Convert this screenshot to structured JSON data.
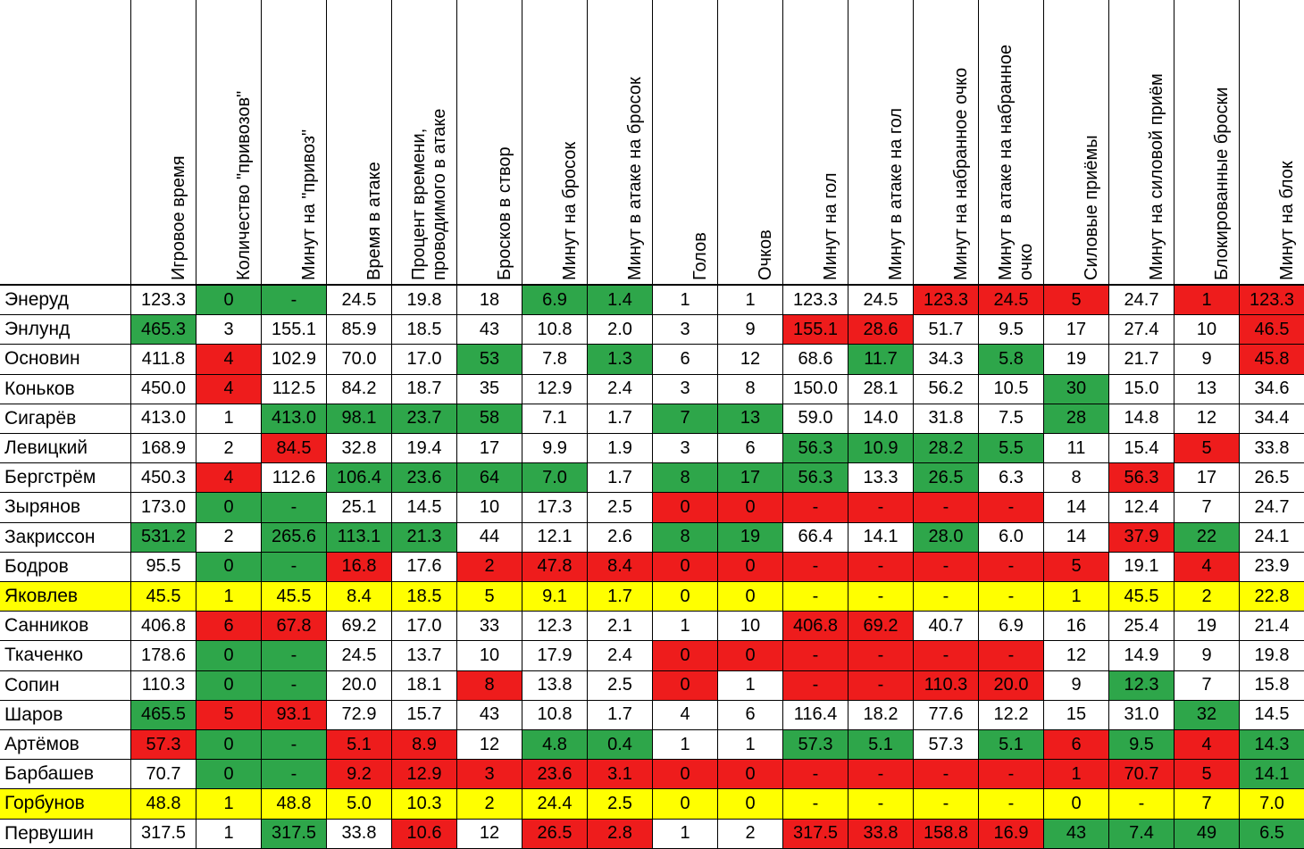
{
  "chart_data": {
    "type": "table",
    "columns": [
      "Игровое время",
      "Количество \"привозов\"",
      "Минут на \"привоз\"",
      "Время в атаке",
      "Процент времени,\nпроводимого в атаке",
      "Бросков в створ",
      "Минут на бросок",
      "Минут в атаке на бросок",
      "Голов",
      "Очков",
      "Минут на гол",
      "Минут в атаке на гол",
      "Минут на набранное очко",
      "Минут в атаке на набранное\nочко",
      "Силовые приёмы",
      "Минут на силовой приём",
      "Блокированные броски",
      "Минут на блок"
    ],
    "colors": {
      "G": "#2ea64a",
      "R": "#ee1c1c",
      "Y": "#ffff00",
      "W": "#ffffff"
    },
    "rows": [
      {
        "name": "Энеруд",
        "values": [
          "123.3",
          "0",
          "-",
          "24.5",
          "19.8",
          "18",
          "6.9",
          "1.4",
          "1",
          "1",
          "123.3",
          "24.5",
          "123.3",
          "24.5",
          "5",
          "24.7",
          "1",
          "123.3"
        ],
        "colors": "WGGWWWGGWWWWRRRWRR"
      },
      {
        "name": "Энлунд",
        "values": [
          "465.3",
          "3",
          "155.1",
          "85.9",
          "18.5",
          "43",
          "10.8",
          "2.0",
          "3",
          "9",
          "155.1",
          "28.6",
          "51.7",
          "9.5",
          "17",
          "27.4",
          "10",
          "46.5"
        ],
        "colors": "GWWWWWWWWWRRWWWWWR"
      },
      {
        "name": "Основин",
        "values": [
          "411.8",
          "4",
          "102.9",
          "70.0",
          "17.0",
          "53",
          "7.8",
          "1.3",
          "6",
          "12",
          "68.6",
          "11.7",
          "34.3",
          "5.8",
          "19",
          "21.7",
          "9",
          "45.8"
        ],
        "colors": "WRWWWGWGWWWGWGWWWR"
      },
      {
        "name": "Коньков",
        "values": [
          "450.0",
          "4",
          "112.5",
          "84.2",
          "18.7",
          "35",
          "12.9",
          "2.4",
          "3",
          "8",
          "150.0",
          "28.1",
          "56.2",
          "10.5",
          "30",
          "15.0",
          "13",
          "34.6"
        ],
        "colors": "WRWWWWWWWWWWWWGWWW"
      },
      {
        "name": "Сигарёв",
        "values": [
          "413.0",
          "1",
          "413.0",
          "98.1",
          "23.7",
          "58",
          "7.1",
          "1.7",
          "7",
          "13",
          "59.0",
          "14.0",
          "31.8",
          "7.5",
          "28",
          "14.8",
          "12",
          "34.4"
        ],
        "colors": "WWGGGGWWGGWWWWGWWW"
      },
      {
        "name": "Левицкий",
        "values": [
          "168.9",
          "2",
          "84.5",
          "32.8",
          "19.4",
          "17",
          "9.9",
          "1.9",
          "3",
          "6",
          "56.3",
          "10.9",
          "28.2",
          "5.5",
          "11",
          "15.4",
          "5",
          "33.8"
        ],
        "colors": "WWRWWWWWWWGGGGWWRW"
      },
      {
        "name": "Бергстрём",
        "values": [
          "450.3",
          "4",
          "112.6",
          "106.4",
          "23.6",
          "64",
          "7.0",
          "1.7",
          "8",
          "17",
          "56.3",
          "13.3",
          "26.5",
          "6.3",
          "8",
          "56.3",
          "17",
          "26.5"
        ],
        "colors": "WRWGGGGWGGGWGWWRWW"
      },
      {
        "name": "Зырянов",
        "values": [
          "173.0",
          "0",
          "-",
          "25.1",
          "14.5",
          "10",
          "17.3",
          "2.5",
          "0",
          "0",
          "-",
          "-",
          "-",
          "-",
          "14",
          "12.4",
          "7",
          "24.7"
        ],
        "colors": "WGGWWWWWRRRRRRWWWW"
      },
      {
        "name": "Закриссон",
        "values": [
          "531.2",
          "2",
          "265.6",
          "113.1",
          "21.3",
          "44",
          "12.1",
          "2.6",
          "8",
          "19",
          "66.4",
          "14.1",
          "28.0",
          "6.0",
          "14",
          "37.9",
          "22",
          "24.1"
        ],
        "colors": "GWGGGWWWGGWWGWWRGW"
      },
      {
        "name": "Бодров",
        "values": [
          "95.5",
          "0",
          "-",
          "16.8",
          "17.6",
          "2",
          "47.8",
          "8.4",
          "0",
          "0",
          "-",
          "-",
          "-",
          "-",
          "5",
          "19.1",
          "4",
          "23.9"
        ],
        "colors": "WGGRWRRRRRRRRRRWRW"
      },
      {
        "name": "Яковлев",
        "values": [
          "45.5",
          "1",
          "45.5",
          "8.4",
          "18.5",
          "5",
          "9.1",
          "1.7",
          "0",
          "0",
          "-",
          "-",
          "-",
          "-",
          "1",
          "45.5",
          "2",
          "22.8"
        ],
        "colors": "YYYYYYYYYYYYYYYYYY",
        "name_color": "Y"
      },
      {
        "name": "Санников",
        "values": [
          "406.8",
          "6",
          "67.8",
          "69.2",
          "17.0",
          "33",
          "12.3",
          "2.1",
          "1",
          "10",
          "406.8",
          "69.2",
          "40.7",
          "6.9",
          "16",
          "25.4",
          "19",
          "21.4"
        ],
        "colors": "WRRWWWWWWWRRWWWWWW"
      },
      {
        "name": "Ткаченко",
        "values": [
          "178.6",
          "0",
          "-",
          "24.5",
          "13.7",
          "10",
          "17.9",
          "2.4",
          "0",
          "0",
          "-",
          "-",
          "-",
          "-",
          "12",
          "14.9",
          "9",
          "19.8"
        ],
        "colors": "WGGWWWWWRRRRRRWWWW"
      },
      {
        "name": "Сопин",
        "values": [
          "110.3",
          "0",
          "-",
          "20.0",
          "18.1",
          "8",
          "13.8",
          "2.5",
          "0",
          "1",
          "-",
          "-",
          "110.3",
          "20.0",
          "9",
          "12.3",
          "7",
          "15.8"
        ],
        "colors": "WGGWWRWWRWRRRRWGWW"
      },
      {
        "name": "Шаров",
        "values": [
          "465.5",
          "5",
          "93.1",
          "72.9",
          "15.7",
          "43",
          "10.8",
          "1.7",
          "4",
          "6",
          "116.4",
          "18.2",
          "77.6",
          "12.2",
          "15",
          "31.0",
          "32",
          "14.5"
        ],
        "colors": "GRRWWWWWWWWWWWWWGW"
      },
      {
        "name": "Артёмов",
        "values": [
          "57.3",
          "0",
          "-",
          "5.1",
          "8.9",
          "12",
          "4.8",
          "0.4",
          "1",
          "1",
          "57.3",
          "5.1",
          "57.3",
          "5.1",
          "6",
          "9.5",
          "4",
          "14.3"
        ],
        "colors": "RGGRRWGGWWGGWGRGRG"
      },
      {
        "name": "Барбашев",
        "values": [
          "70.7",
          "0",
          "-",
          "9.2",
          "12.9",
          "3",
          "23.6",
          "3.1",
          "0",
          "0",
          "-",
          "-",
          "-",
          "-",
          "1",
          "70.7",
          "5",
          "14.1"
        ],
        "colors": "WGGRRRRRRRRRRRRRRG"
      },
      {
        "name": "Горбунов",
        "values": [
          "48.8",
          "1",
          "48.8",
          "5.0",
          "10.3",
          "2",
          "24.4",
          "2.5",
          "0",
          "0",
          "-",
          "-",
          "-",
          "-",
          "0",
          "-",
          "7",
          "7.0"
        ],
        "colors": "YYYYYYYYYYYYYYYYYY",
        "name_color": "Y"
      },
      {
        "name": "Первушин",
        "values": [
          "317.5",
          "1",
          "317.5",
          "33.8",
          "10.6",
          "12",
          "26.5",
          "2.8",
          "1",
          "2",
          "317.5",
          "33.8",
          "158.8",
          "16.9",
          "43",
          "7.4",
          "49",
          "6.5"
        ],
        "colors": "WWGWRWRRWWRRRRGGGG"
      }
    ]
  }
}
